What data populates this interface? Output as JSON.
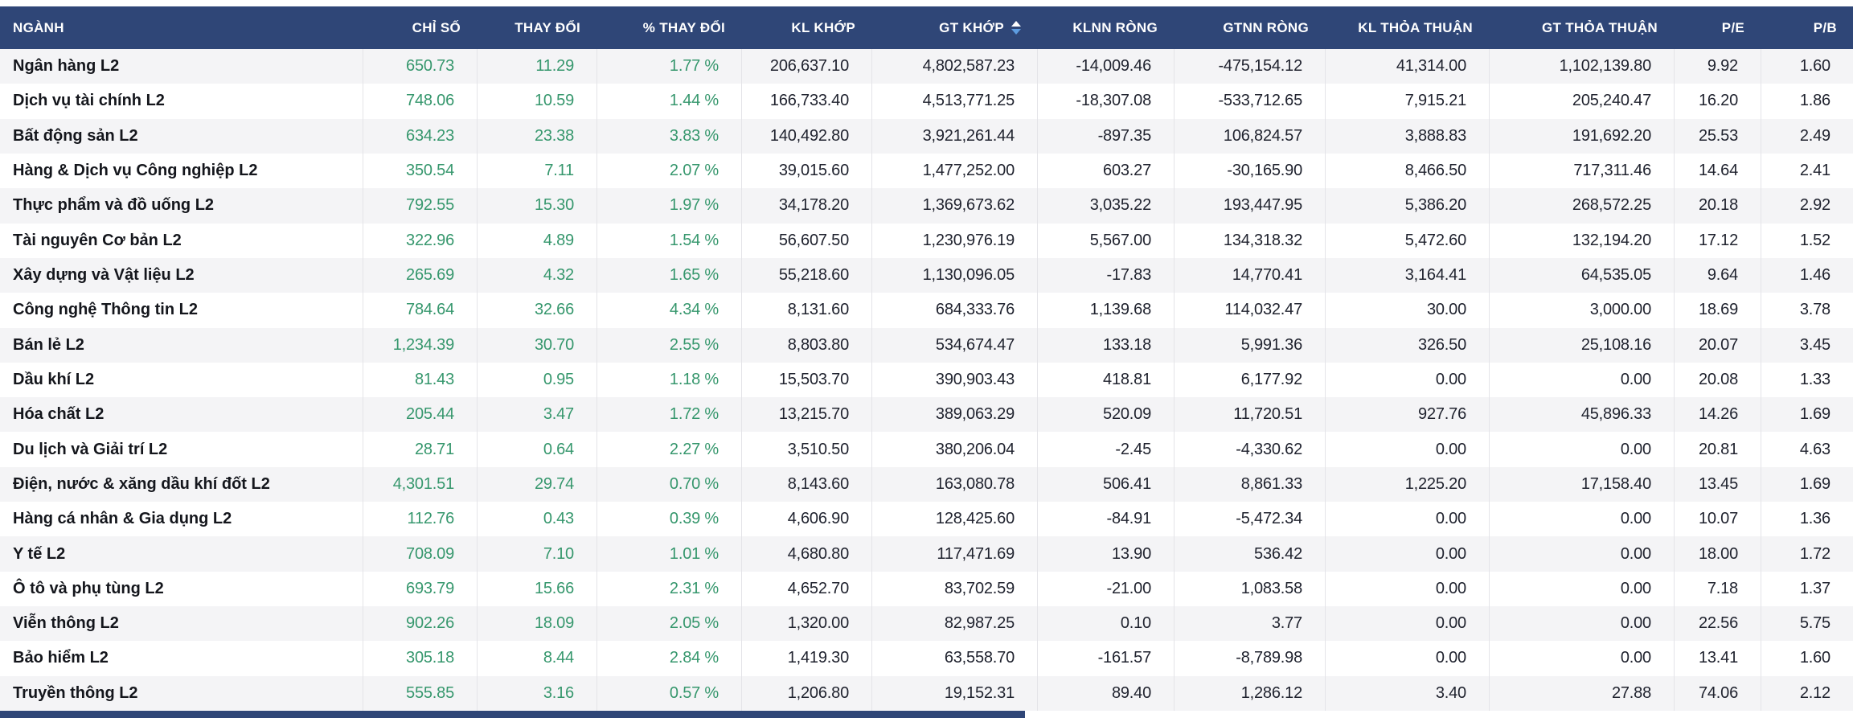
{
  "colors": {
    "header_bg": "#2f4677",
    "header_text": "#ffffff",
    "positive": "#36976d",
    "value_text": "#20232f",
    "name_text": "#14161c",
    "row_alt": "#f4f4f6",
    "divider": "#e4e4e8",
    "sort_up": "#ffffff",
    "sort_down": "#5d9ce0",
    "scrollbar": "#2f4677"
  },
  "sort": {
    "column": "GT KHỚP",
    "direction": "desc"
  },
  "table": {
    "columns": [
      {
        "label": "NGÀNH",
        "key": "nganh"
      },
      {
        "label": "CHỈ SỐ",
        "key": "chi-so"
      },
      {
        "label": "THAY ĐỔI",
        "key": "thay-doi"
      },
      {
        "label": "% THAY ĐỔI",
        "key": "pct-thay-doi"
      },
      {
        "label": "KL KHỚP",
        "key": "kl-khop"
      },
      {
        "label": "GT KHỚP",
        "key": "gt-khop"
      },
      {
        "label": "KLNN RÒNG",
        "key": "klnn-rong"
      },
      {
        "label": "GTNN RÒNG",
        "key": "gtnn-rong"
      },
      {
        "label": "KL THỎA THUẬN",
        "key": "kl-thoa-thuan"
      },
      {
        "label": "GT THỎA THUẬN",
        "key": "gt-thoa-thuan"
      },
      {
        "label": "P/E",
        "key": "pe"
      },
      {
        "label": "P/B",
        "key": "pb"
      }
    ],
    "rows": [
      {
        "name": "Ngân hàng L2",
        "values": [
          "650.73",
          "11.29",
          "1.77 %",
          "206,637.10",
          "4,802,587.23",
          "-14,009.46",
          "-475,154.12",
          "41,314.00",
          "1,102,139.80",
          "9.92",
          "1.60"
        ]
      },
      {
        "name": "Dịch vụ tài chính L2",
        "values": [
          "748.06",
          "10.59",
          "1.44 %",
          "166,733.40",
          "4,513,771.25",
          "-18,307.08",
          "-533,712.65",
          "7,915.21",
          "205,240.47",
          "16.20",
          "1.86"
        ]
      },
      {
        "name": "Bất động sản L2",
        "values": [
          "634.23",
          "23.38",
          "3.83 %",
          "140,492.80",
          "3,921,261.44",
          "-897.35",
          "106,824.57",
          "3,888.83",
          "191,692.20",
          "25.53",
          "2.49"
        ]
      },
      {
        "name": "Hàng & Dịch vụ Công nghiệp L2",
        "values": [
          "350.54",
          "7.11",
          "2.07 %",
          "39,015.60",
          "1,477,252.00",
          "603.27",
          "-30,165.90",
          "8,466.50",
          "717,311.46",
          "14.64",
          "2.41"
        ]
      },
      {
        "name": "Thực phẩm và đồ uống L2",
        "values": [
          "792.55",
          "15.30",
          "1.97 %",
          "34,178.20",
          "1,369,673.62",
          "3,035.22",
          "193,447.95",
          "5,386.20",
          "268,572.25",
          "20.18",
          "2.92"
        ]
      },
      {
        "name": "Tài nguyên Cơ bản L2",
        "values": [
          "322.96",
          "4.89",
          "1.54 %",
          "56,607.50",
          "1,230,976.19",
          "5,567.00",
          "134,318.32",
          "5,472.60",
          "132,194.20",
          "17.12",
          "1.52"
        ]
      },
      {
        "name": "Xây dựng và Vật liệu L2",
        "values": [
          "265.69",
          "4.32",
          "1.65 %",
          "55,218.60",
          "1,130,096.05",
          "-17.83",
          "14,770.41",
          "3,164.41",
          "64,535.05",
          "9.64",
          "1.46"
        ]
      },
      {
        "name": "Công nghệ Thông tin L2",
        "values": [
          "784.64",
          "32.66",
          "4.34 %",
          "8,131.60",
          "684,333.76",
          "1,139.68",
          "114,032.47",
          "30.00",
          "3,000.00",
          "18.69",
          "3.78"
        ]
      },
      {
        "name": "Bán lẻ L2",
        "values": [
          "1,234.39",
          "30.70",
          "2.55 %",
          "8,803.80",
          "534,674.47",
          "133.18",
          "5,991.36",
          "326.50",
          "25,108.16",
          "20.07",
          "3.45"
        ]
      },
      {
        "name": "Dầu khí L2",
        "values": [
          "81.43",
          "0.95",
          "1.18 %",
          "15,503.70",
          "390,903.43",
          "418.81",
          "6,177.92",
          "0.00",
          "0.00",
          "20.08",
          "1.33"
        ]
      },
      {
        "name": "Hóa chất L2",
        "values": [
          "205.44",
          "3.47",
          "1.72 %",
          "13,215.70",
          "389,063.29",
          "520.09",
          "11,720.51",
          "927.76",
          "45,896.33",
          "14.26",
          "1.69"
        ]
      },
      {
        "name": "Du lịch và Giải trí L2",
        "values": [
          "28.71",
          "0.64",
          "2.27 %",
          "3,510.50",
          "380,206.04",
          "-2.45",
          "-4,330.62",
          "0.00",
          "0.00",
          "20.81",
          "4.63"
        ]
      },
      {
        "name": "Điện, nước & xăng dầu khí đốt L2",
        "values": [
          "4,301.51",
          "29.74",
          "0.70 %",
          "8,143.60",
          "163,080.78",
          "506.41",
          "8,861.33",
          "1,225.20",
          "17,158.40",
          "13.45",
          "1.69"
        ]
      },
      {
        "name": "Hàng cá nhân & Gia dụng L2",
        "values": [
          "112.76",
          "0.43",
          "0.39 %",
          "4,606.90",
          "128,425.60",
          "-84.91",
          "-5,472.34",
          "0.00",
          "0.00",
          "10.07",
          "1.36"
        ]
      },
      {
        "name": "Y tế L2",
        "values": [
          "708.09",
          "7.10",
          "1.01 %",
          "4,680.80",
          "117,471.69",
          "13.90",
          "536.42",
          "0.00",
          "0.00",
          "18.00",
          "1.72"
        ]
      },
      {
        "name": "Ô tô và phụ tùng L2",
        "values": [
          "693.79",
          "15.66",
          "2.31 %",
          "4,652.70",
          "83,702.59",
          "-21.00",
          "1,083.58",
          "0.00",
          "0.00",
          "7.18",
          "1.37"
        ]
      },
      {
        "name": "Viễn thông L2",
        "values": [
          "902.26",
          "18.09",
          "2.05 %",
          "1,320.00",
          "82,987.25",
          "0.10",
          "3.77",
          "0.00",
          "0.00",
          "22.56",
          "5.75"
        ]
      },
      {
        "name": "Bảo hiểm L2",
        "values": [
          "305.18",
          "8.44",
          "2.84 %",
          "1,419.30",
          "63,558.70",
          "-161.57",
          "-8,789.98",
          "0.00",
          "0.00",
          "13.41",
          "1.60"
        ]
      },
      {
        "name": "Truyền thông L2",
        "values": [
          "555.85",
          "3.16",
          "0.57 %",
          "1,206.80",
          "19,152.31",
          "89.40",
          "1,286.12",
          "3.40",
          "27.88",
          "74.06",
          "2.12"
        ]
      }
    ]
  }
}
